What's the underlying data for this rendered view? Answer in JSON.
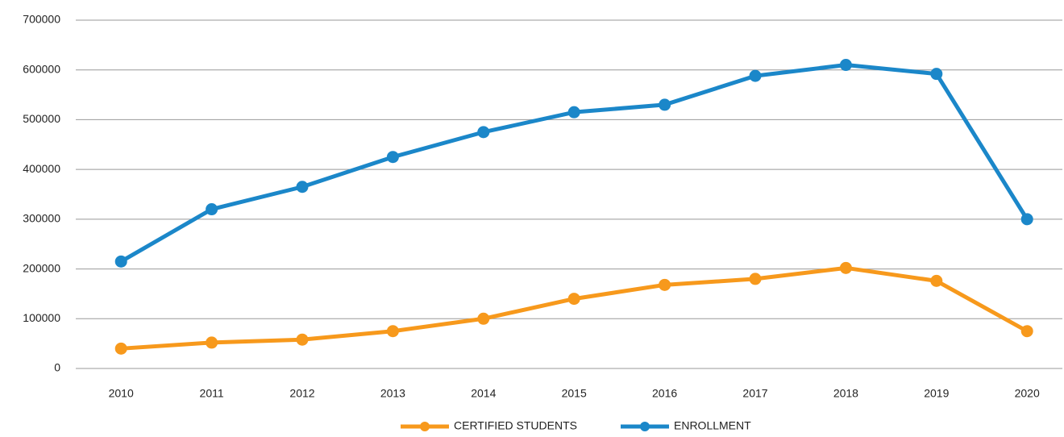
{
  "chart_data": {
    "type": "line",
    "categories": [
      "2010",
      "2011",
      "2012",
      "2013",
      "2014",
      "2015",
      "2016",
      "2017",
      "2018",
      "2019",
      "2020"
    ],
    "series": [
      {
        "name": "CERTIFIED STUDENTS",
        "color": "#f7991c",
        "values": [
          40000,
          52000,
          58000,
          75000,
          100000,
          140000,
          168000,
          180000,
          202000,
          176000,
          75000
        ]
      },
      {
        "name": "ENROLLMENT",
        "color": "#1b87c9",
        "values": [
          215000,
          320000,
          365000,
          425000,
          475000,
          515000,
          530000,
          588000,
          610000,
          592000,
          300000
        ]
      }
    ],
    "ylim": [
      0,
      700000
    ],
    "yticks": [
      0,
      100000,
      200000,
      300000,
      400000,
      500000,
      600000,
      700000
    ],
    "grid": true,
    "legend": "bottom"
  }
}
